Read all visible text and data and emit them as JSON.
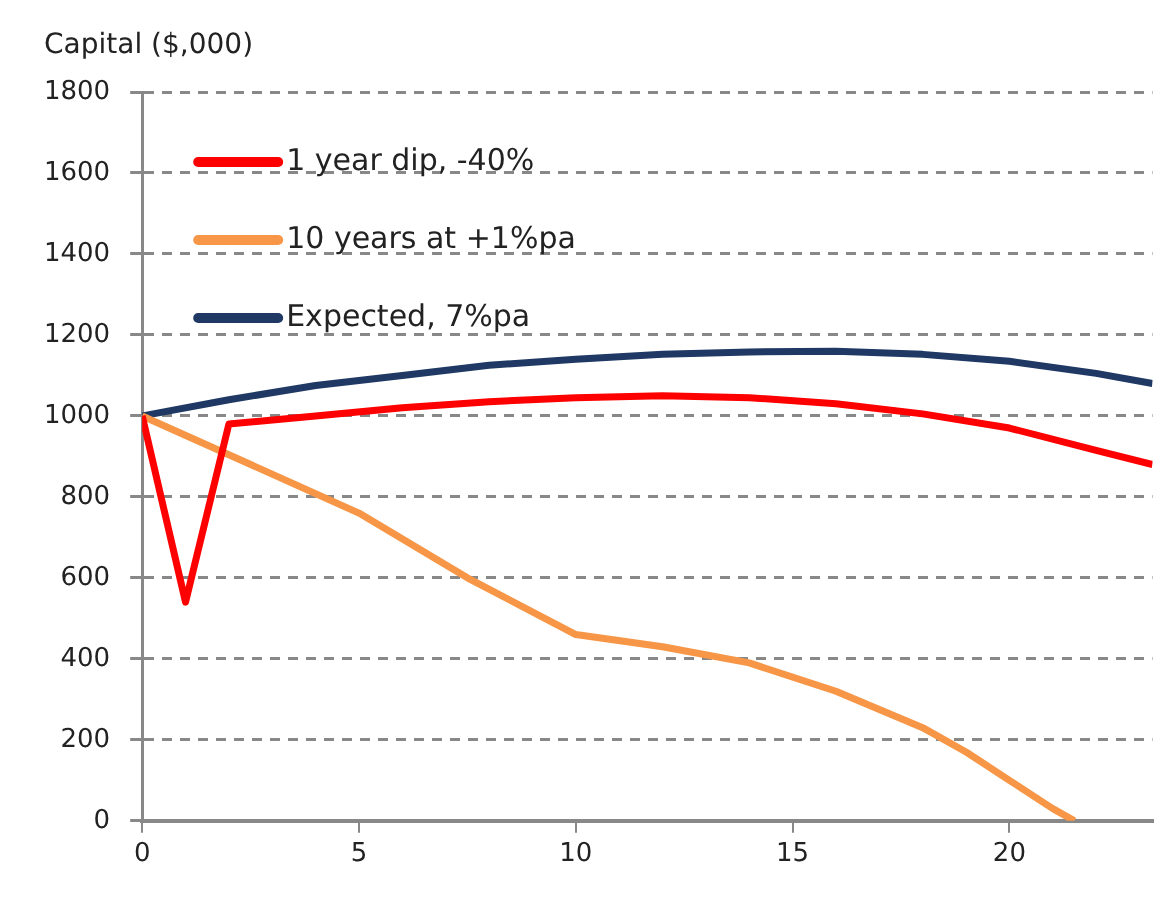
{
  "chart_data": {
    "type": "line",
    "ylabel": "Capital ($,000)",
    "xlim": [
      0,
      23.3
    ],
    "xticks": [
      0,
      5,
      10,
      15,
      20
    ],
    "ylim": [
      0,
      1800
    ],
    "yticks": [
      0,
      200,
      400,
      600,
      800,
      1000,
      1200,
      1400,
      1600,
      1800
    ],
    "grid": "y",
    "legend": "top left",
    "marker": "none",
    "line_style": "solid",
    "series": [
      {
        "name": "1 year dip, -40%",
        "color": "#ff0000",
        "x": [
          0,
          1,
          2,
          4,
          6,
          8,
          10,
          12,
          14,
          16,
          18,
          20,
          22,
          23.3
        ],
        "values": [
          1000,
          540,
          980,
          1000,
          1020,
          1035,
          1045,
          1050,
          1045,
          1030,
          1005,
          970,
          915,
          880
        ]
      },
      {
        "name": "10 years at +1%pa",
        "color": "#f79646",
        "x": [
          0,
          5,
          7.5,
          10,
          12,
          14,
          16,
          18,
          19,
          20,
          21,
          21.5
        ],
        "values": [
          1000,
          760,
          600,
          460,
          430,
          390,
          320,
          230,
          170,
          100,
          30,
          0
        ]
      },
      {
        "name": "Expected, 7%pa",
        "color": "#1f3864",
        "x": [
          0,
          2,
          4,
          6,
          8,
          10,
          12,
          14,
          16,
          18,
          20,
          22,
          23.3
        ],
        "values": [
          1000,
          1040,
          1075,
          1100,
          1125,
          1140,
          1152,
          1158,
          1160,
          1152,
          1135,
          1105,
          1080
        ]
      }
    ]
  }
}
